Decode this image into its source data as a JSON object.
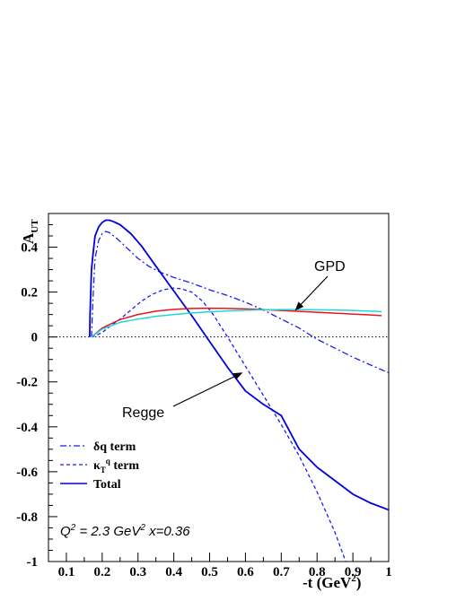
{
  "chart_data": {
    "type": "line",
    "ylabel": {
      "main": "A",
      "sub": "UT"
    },
    "xlabel": {
      "main": "-t (GeV",
      "sup": "2",
      "tail": ")"
    },
    "xlim": [
      0.05,
      1.0
    ],
    "ylim": [
      -1.0,
      0.55
    ],
    "xticks": [
      0.1,
      0.2,
      0.3,
      0.4,
      0.5,
      0.6,
      0.7,
      0.8,
      0.9,
      1.0
    ],
    "xtick_labels": [
      "0.1",
      "0.2",
      "0.3",
      "0.4",
      "0.5",
      "0.6",
      "0.7",
      "0.8",
      "0.9",
      "1"
    ],
    "yticks": [
      -1.0,
      -0.8,
      -0.6,
      -0.4,
      -0.2,
      0.0,
      0.2,
      0.4
    ],
    "ytick_labels": [
      "-1",
      "-0.8",
      "-0.6",
      "-0.4",
      "-0.2",
      "0",
      "0.2",
      "0.4"
    ],
    "zero_line": true,
    "series": [
      {
        "name": "δq term",
        "color": "#1a1aff",
        "style": "dashdot",
        "x": [
          0.17,
          0.175,
          0.18,
          0.19,
          0.2,
          0.21,
          0.22,
          0.24,
          0.26,
          0.28,
          0.3,
          0.33,
          0.36,
          0.4,
          0.45,
          0.5,
          0.55,
          0.6,
          0.65,
          0.7,
          0.75,
          0.8,
          0.85,
          0.9,
          0.95,
          1.0
        ],
        "y": [
          0.0,
          0.2,
          0.35,
          0.43,
          0.46,
          0.47,
          0.465,
          0.44,
          0.41,
          0.38,
          0.35,
          0.315,
          0.29,
          0.265,
          0.24,
          0.21,
          0.185,
          0.155,
          0.12,
          0.08,
          0.04,
          -0.01,
          -0.05,
          -0.09,
          -0.125,
          -0.16
        ]
      },
      {
        "name": "κ",
        "name_sub": "T",
        "name_sup": "q",
        "name_tail": " term",
        "color": "#1a1aff",
        "style": "dashed",
        "x": [
          0.17,
          0.18,
          0.2,
          0.22,
          0.25,
          0.28,
          0.31,
          0.34,
          0.37,
          0.4,
          0.42,
          0.45,
          0.48,
          0.51,
          0.55,
          0.6,
          0.65,
          0.7,
          0.75,
          0.8,
          0.85,
          0.88
        ],
        "y": [
          0.0,
          0.005,
          0.02,
          0.045,
          0.08,
          0.12,
          0.16,
          0.19,
          0.21,
          0.218,
          0.215,
          0.2,
          0.16,
          0.1,
          0.0,
          -0.13,
          -0.26,
          -0.39,
          -0.53,
          -0.69,
          -0.87,
          -1.0
        ]
      },
      {
        "name": "Total",
        "color": "#0000dd",
        "style": "solid",
        "x": [
          0.165,
          0.166,
          0.168,
          0.17,
          0.175,
          0.18,
          0.19,
          0.2,
          0.21,
          0.22,
          0.23,
          0.25,
          0.28,
          0.31,
          0.35,
          0.4,
          0.45,
          0.5,
          0.55,
          0.6,
          0.65,
          0.7,
          0.75,
          0.8,
          0.85,
          0.9,
          0.95,
          1.0
        ],
        "y": [
          0.0,
          0.1,
          0.2,
          0.3,
          0.38,
          0.45,
          0.49,
          0.51,
          0.52,
          0.52,
          0.515,
          0.5,
          0.46,
          0.405,
          0.315,
          0.205,
          0.095,
          -0.02,
          -0.135,
          -0.24,
          -0.3,
          -0.35,
          -0.5,
          -0.58,
          -0.64,
          -0.7,
          -0.74,
          -0.77
        ]
      },
      {
        "name": "",
        "color": "#e8141e",
        "style": "solid",
        "x": [
          0.17,
          0.2,
          0.25,
          0.3,
          0.35,
          0.4,
          0.45,
          0.5,
          0.55,
          0.6,
          0.65,
          0.7,
          0.75,
          0.8,
          0.85,
          0.9,
          0.95,
          0.98
        ],
        "y": [
          0.0,
          0.04,
          0.078,
          0.1,
          0.115,
          0.123,
          0.127,
          0.128,
          0.127,
          0.125,
          0.122,
          0.118,
          0.114,
          0.11,
          0.106,
          0.102,
          0.098,
          0.095
        ]
      },
      {
        "name": "",
        "color": "#20d6d6",
        "style": "solid",
        "x": [
          0.17,
          0.2,
          0.25,
          0.3,
          0.35,
          0.4,
          0.45,
          0.5,
          0.55,
          0.6,
          0.65,
          0.7,
          0.75,
          0.8,
          0.85,
          0.9,
          0.95,
          0.98
        ],
        "y": [
          0.0,
          0.035,
          0.065,
          0.08,
          0.092,
          0.1,
          0.107,
          0.112,
          0.116,
          0.119,
          0.121,
          0.122,
          0.122,
          0.121,
          0.12,
          0.118,
          0.115,
          0.113
        ]
      }
    ],
    "legend": {
      "placement": "bottom-left",
      "entries": [
        "δq term",
        "κ_T^q term",
        "Total"
      ]
    },
    "annotations": [
      {
        "text": "GPD",
        "arrow_to": [
          0.74,
          0.12
        ]
      },
      {
        "text": "Regge",
        "arrow_to": [
          0.59,
          -0.16
        ]
      }
    ],
    "note": {
      "q": "Q",
      "q_sup": "2",
      "mid": " = 2.3 GeV",
      "mid_sup": "2",
      "tail": " x=0.36"
    }
  }
}
